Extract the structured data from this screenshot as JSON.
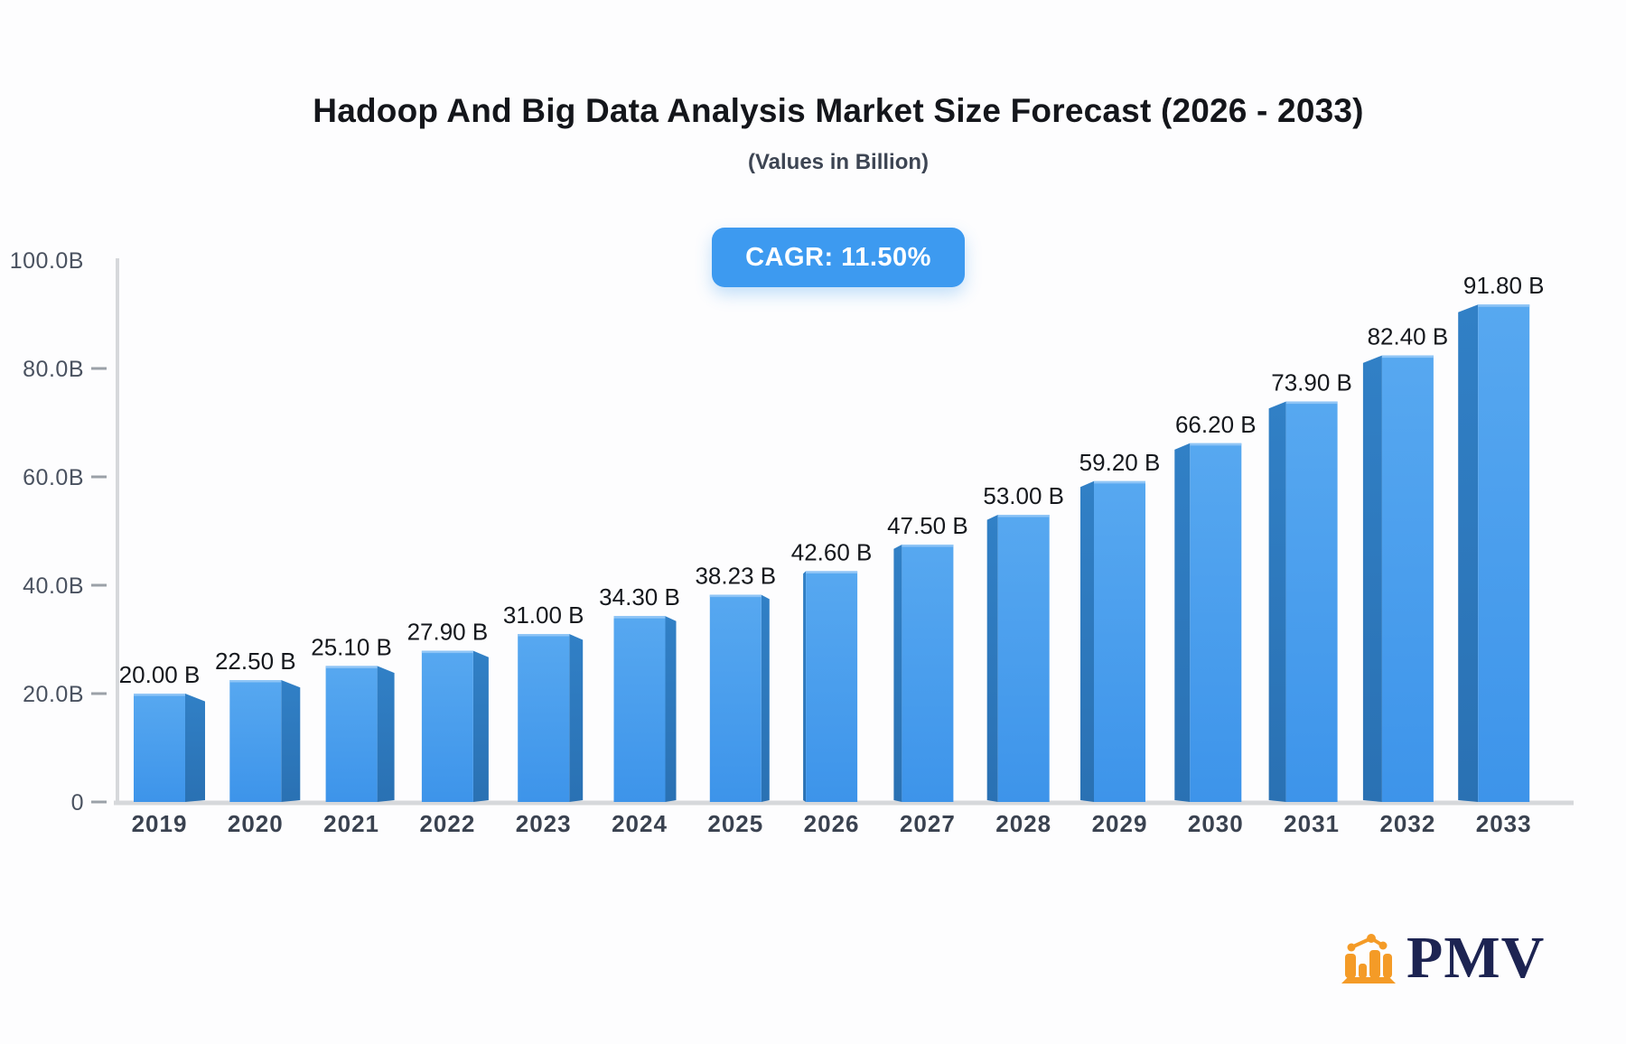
{
  "header": {
    "title": "Hadoop And Big Data Analysis Market Size Forecast (2026 - 2033)",
    "subtitle": "(Values in Billion)",
    "cagr_badge": "CAGR: 11.50%"
  },
  "chart_data": {
    "type": "bar",
    "title": "Hadoop And Big Data Analysis Market Size Forecast (2026 - 2033)",
    "subtitle": "(Values in Billion)",
    "cagr": "11.50%",
    "categories": [
      "2019",
      "2020",
      "2021",
      "2022",
      "2023",
      "2024",
      "2025",
      "2026",
      "2027",
      "2028",
      "2029",
      "2030",
      "2031",
      "2032",
      "2033"
    ],
    "values": [
      20.0,
      22.5,
      25.1,
      27.9,
      31.0,
      34.3,
      38.23,
      42.6,
      47.5,
      53.0,
      59.2,
      66.2,
      73.9,
      82.4,
      91.8
    ],
    "bar_labels": [
      "20.00 B",
      "22.50 B",
      "25.10 B",
      "27.90 B",
      "31.00 B",
      "34.30 B",
      "38.23 B",
      "42.60 B",
      "47.50 B",
      "53.00 B",
      "59.20 B",
      "66.20 B",
      "73.90 B",
      "82.40 B",
      "91.80 B"
    ],
    "xlabel": "",
    "ylabel": "",
    "ylim": [
      0,
      100
    ],
    "grid": false,
    "legend": false,
    "yticks": [
      {
        "value": 0,
        "label": "0",
        "dash": true
      },
      {
        "value": 20,
        "label": "20.0B",
        "dash": true
      },
      {
        "value": 40,
        "label": "40.0B",
        "dash": true
      },
      {
        "value": 60,
        "label": "60.0B",
        "dash": true
      },
      {
        "value": 80,
        "label": "80.0B",
        "dash": true
      },
      {
        "value": 100,
        "label": "100.0B",
        "dash": false
      }
    ],
    "colors": {
      "bar_front_top": "#57A8F0",
      "bar_front_bottom": "#3D94EA",
      "bar_side_top": "#3180C6",
      "bar_side_bottom": "#2A71B3",
      "bar_top_highlight": "#8FC5F6",
      "axis_line": "#D6D8DB",
      "tick": "#9BA1A8",
      "tick_label": "#4A5260",
      "category_label": "#3A4250",
      "value_label": "#15181D",
      "badge_bg": "#3D9AF0",
      "badge_text": "#FFFFFF"
    }
  },
  "logo": {
    "text": "PMV",
    "icon": "bar-chart-icon",
    "colors": {
      "orange": "#F49B27",
      "navy": "#1D2452"
    }
  }
}
